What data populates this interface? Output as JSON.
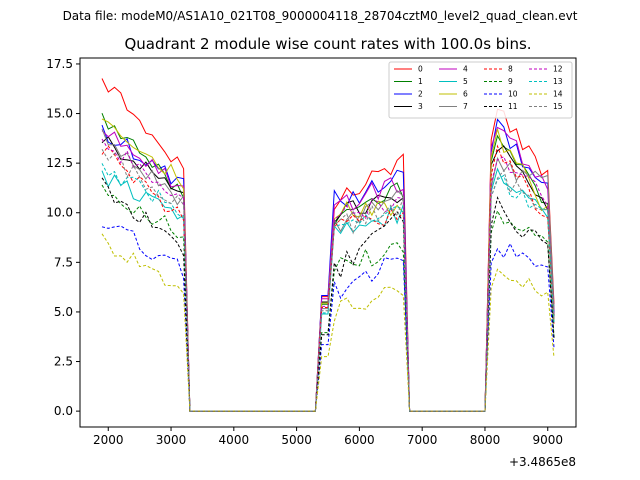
{
  "chart_data": {
    "type": "line",
    "suptitle": "Data file: modeM0/AS1A10_021T08_9000004118_28704cztM0_level2_quad_clean.evt",
    "title": "Quadrant 2 module wise count rates with 100.0s bins.",
    "x_offset_label": "+3.4865e8",
    "xlim": [
      1550,
      9450
    ],
    "ylim": [
      -0.8,
      17.8
    ],
    "xticks": [
      2000,
      3000,
      4000,
      5000,
      6000,
      7000,
      8000,
      9000
    ],
    "xtick_labels": [
      "2000",
      "3000",
      "4000",
      "5000",
      "6000",
      "7000",
      "8000",
      "9000"
    ],
    "yticks": [
      0.0,
      2.5,
      5.0,
      7.5,
      10.0,
      12.5,
      15.0,
      17.5
    ],
    "ytick_labels": [
      "0.0",
      "2.5",
      "5.0",
      "7.5",
      "10.0",
      "12.5",
      "15.0",
      "17.5"
    ],
    "legend_position": "top-right",
    "legend_columns": 4,
    "segments": [
      {
        "start": 1900,
        "end": 3300,
        "plateau_end": 3200
      },
      {
        "start": 5400,
        "end": 6900,
        "plateau_start": 5600,
        "plateau_end": 6700
      },
      {
        "start": 8050,
        "end": 9100,
        "plateau_start": 8150,
        "plateau_end": 9000
      }
    ],
    "series": [
      {
        "name": "0",
        "color": "#ff0000",
        "dash": "solid",
        "seg_levels": [
          16.8,
          10.5,
          15.2
        ],
        "seg_end_levels": [
          12.0,
          12.8,
          12.0
        ]
      },
      {
        "name": "1",
        "color": "#008000",
        "dash": "solid",
        "seg_levels": [
          14.7,
          9.8,
          14.0
        ],
        "seg_end_levels": [
          11.0,
          11.2,
          10.5
        ]
      },
      {
        "name": "2",
        "color": "#0000ff",
        "dash": "solid",
        "seg_levels": [
          14.2,
          10.6,
          14.5
        ],
        "seg_end_levels": [
          11.3,
          11.8,
          11.0
        ]
      },
      {
        "name": "3",
        "color": "#000000",
        "dash": "solid",
        "seg_levels": [
          13.8,
          10.0,
          13.8
        ],
        "seg_end_levels": [
          10.8,
          11.0,
          10.5
        ]
      },
      {
        "name": "4",
        "color": "#bf00bf",
        "dash": "solid",
        "seg_levels": [
          14.5,
          10.3,
          14.8
        ],
        "seg_end_levels": [
          11.2,
          11.6,
          11.3
        ]
      },
      {
        "name": "5",
        "color": "#00bfbf",
        "dash": "solid",
        "seg_levels": [
          11.8,
          8.9,
          12.3
        ],
        "seg_end_levels": [
          10.0,
          10.0,
          10.0
        ]
      },
      {
        "name": "6",
        "color": "#bfbf00",
        "dash": "solid",
        "seg_levels": [
          14.9,
          9.9,
          14.2
        ],
        "seg_end_levels": [
          11.5,
          10.5,
          10.0
        ]
      },
      {
        "name": "7",
        "color": "#808080",
        "dash": "solid",
        "seg_levels": [
          13.9,
          9.4,
          12.5
        ],
        "seg_end_levels": [
          10.5,
          10.8,
          11.5
        ]
      },
      {
        "name": "8",
        "color": "#ff0000",
        "dash": "dashed",
        "seg_levels": [
          13.3,
          9.5,
          13.2
        ],
        "seg_end_levels": [
          9.6,
          9.7,
          9.8
        ]
      },
      {
        "name": "9",
        "color": "#008000",
        "dash": "dashed",
        "seg_levels": [
          11.4,
          7.2,
          10.0
        ],
        "seg_end_levels": [
          8.8,
          8.3,
          8.3
        ]
      },
      {
        "name": "10",
        "color": "#0000ff",
        "dash": "dashed",
        "seg_levels": [
          9.6,
          6.1,
          8.3
        ],
        "seg_end_levels": [
          7.1,
          7.6,
          7.1
        ]
      },
      {
        "name": "11",
        "color": "#000000",
        "dash": "dashed",
        "seg_levels": [
          11.4,
          7.0,
          10.4
        ],
        "seg_end_levels": [
          8.0,
          10.0,
          8.2
        ]
      },
      {
        "name": "12",
        "color": "#bf00bf",
        "dash": "dashed",
        "seg_levels": [
          13.7,
          9.6,
          12.8
        ],
        "seg_end_levels": [
          10.4,
          10.8,
          10.6
        ]
      },
      {
        "name": "13",
        "color": "#00bfbf",
        "dash": "dashed",
        "seg_levels": [
          12.3,
          9.0,
          12.0
        ],
        "seg_end_levels": [
          10.1,
          10.2,
          9.8
        ]
      },
      {
        "name": "14",
        "color": "#bfbf00",
        "dash": "dashed",
        "seg_levels": [
          8.5,
          5.0,
          6.9
        ],
        "seg_end_levels": [
          6.2,
          6.2,
          6.0
        ]
      },
      {
        "name": "15",
        "color": "#808080",
        "dash": "dashed",
        "seg_levels": [
          13.1,
          9.2,
          12.0
        ],
        "seg_end_levels": [
          10.2,
          10.4,
          10.3
        ]
      }
    ]
  }
}
